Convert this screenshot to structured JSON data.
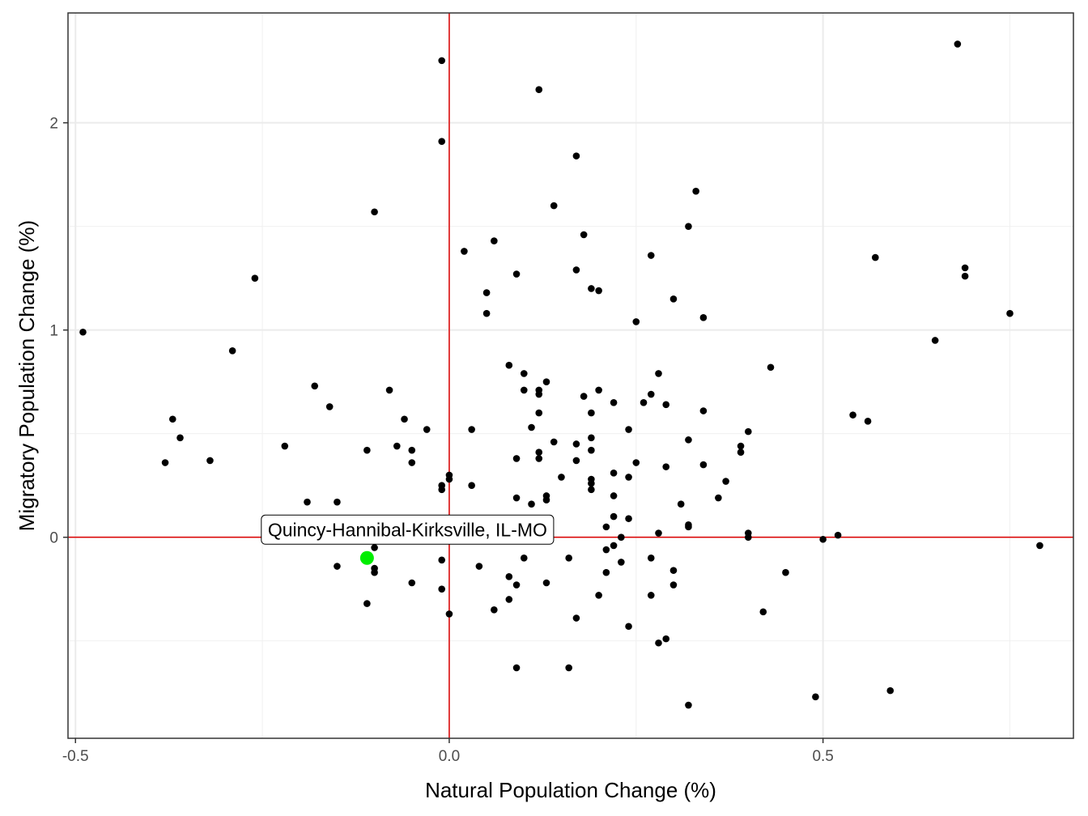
{
  "chart_data": {
    "type": "scatter",
    "title": "",
    "xlabel": "Natural Population Change (%)",
    "ylabel": "Migratory Population Change (%)",
    "xlim": [
      -0.51,
      0.835
    ],
    "ylim": [
      -0.97,
      2.53
    ],
    "x_ticks": [
      -0.5,
      0.0,
      0.5
    ],
    "x_tick_labels": [
      "-0.5",
      "0.0",
      "0.5"
    ],
    "y_ticks": [
      0,
      1,
      2
    ],
    "y_tick_labels": [
      "0",
      "1",
      "2"
    ],
    "x_minor": [
      -0.25,
      0.25,
      0.75
    ],
    "y_minor": [
      -0.5,
      0.5,
      1.5
    ],
    "grid": true,
    "reference_lines": {
      "x": 0,
      "y": 0,
      "color": "#dd0000"
    },
    "highlight": {
      "label": "Quincy-Hannibal-Kirksville, IL-MO",
      "x": -0.11,
      "y": -0.1,
      "color": "#00ee00"
    },
    "points": [
      [
        -0.49,
        0.99
      ],
      [
        -0.38,
        0.36
      ],
      [
        -0.37,
        0.57
      ],
      [
        -0.36,
        0.48
      ],
      [
        -0.32,
        0.37
      ],
      [
        -0.29,
        0.9
      ],
      [
        -0.26,
        1.25
      ],
      [
        -0.22,
        0.44
      ],
      [
        -0.19,
        0.17
      ],
      [
        -0.18,
        0.73
      ],
      [
        -0.16,
        0.63
      ],
      [
        -0.15,
        0.17
      ],
      [
        -0.15,
        -0.14
      ],
      [
        -0.11,
        0.42
      ],
      [
        -0.11,
        -0.32
      ],
      [
        -0.1,
        1.57
      ],
      [
        -0.1,
        -0.17
      ],
      [
        -0.1,
        -0.15
      ],
      [
        -0.1,
        -0.05
      ],
      [
        -0.08,
        0.71
      ],
      [
        -0.07,
        0.44
      ],
      [
        -0.06,
        0.57
      ],
      [
        -0.05,
        0.42
      ],
      [
        -0.05,
        0.36
      ],
      [
        -0.05,
        -0.22
      ],
      [
        -0.03,
        0.52
      ],
      [
        -0.01,
        2.3
      ],
      [
        -0.01,
        1.91
      ],
      [
        -0.01,
        0.25
      ],
      [
        -0.01,
        0.23
      ],
      [
        -0.01,
        -0.11
      ],
      [
        -0.01,
        -0.25
      ],
      [
        0.0,
        0.3
      ],
      [
        0.0,
        0.28
      ],
      [
        0.0,
        -0.37
      ],
      [
        0.02,
        1.38
      ],
      [
        0.03,
        0.52
      ],
      [
        0.03,
        0.25
      ],
      [
        0.04,
        -0.14
      ],
      [
        0.05,
        1.18
      ],
      [
        0.05,
        1.08
      ],
      [
        0.06,
        1.43
      ],
      [
        0.06,
        -0.35
      ],
      [
        0.08,
        0.83
      ],
      [
        0.08,
        -0.19
      ],
      [
        0.08,
        -0.3
      ],
      [
        0.09,
        1.27
      ],
      [
        0.09,
        0.38
      ],
      [
        0.09,
        0.19
      ],
      [
        0.09,
        -0.23
      ],
      [
        0.09,
        -0.63
      ],
      [
        0.1,
        0.79
      ],
      [
        0.1,
        0.71
      ],
      [
        0.1,
        -0.1
      ],
      [
        0.11,
        0.53
      ],
      [
        0.11,
        0.16
      ],
      [
        0.12,
        2.16
      ],
      [
        0.12,
        0.71
      ],
      [
        0.12,
        0.69
      ],
      [
        0.12,
        0.6
      ],
      [
        0.12,
        0.41
      ],
      [
        0.12,
        0.38
      ],
      [
        0.13,
        0.75
      ],
      [
        0.13,
        0.2
      ],
      [
        0.13,
        0.18
      ],
      [
        0.13,
        -0.22
      ],
      [
        0.14,
        1.6
      ],
      [
        0.14,
        0.46
      ],
      [
        0.15,
        0.29
      ],
      [
        0.16,
        -0.1
      ],
      [
        0.16,
        -0.63
      ],
      [
        0.17,
        1.84
      ],
      [
        0.17,
        1.29
      ],
      [
        0.17,
        0.45
      ],
      [
        0.17,
        0.37
      ],
      [
        0.17,
        -0.39
      ],
      [
        0.18,
        1.46
      ],
      [
        0.18,
        0.68
      ],
      [
        0.19,
        1.2
      ],
      [
        0.19,
        0.6
      ],
      [
        0.19,
        0.48
      ],
      [
        0.19,
        0.42
      ],
      [
        0.19,
        0.28
      ],
      [
        0.19,
        0.26
      ],
      [
        0.19,
        0.23
      ],
      [
        0.2,
        1.19
      ],
      [
        0.2,
        0.71
      ],
      [
        0.2,
        -0.28
      ],
      [
        0.21,
        0.05
      ],
      [
        0.21,
        -0.06
      ],
      [
        0.21,
        -0.17
      ],
      [
        0.22,
        0.65
      ],
      [
        0.22,
        0.31
      ],
      [
        0.22,
        0.2
      ],
      [
        0.22,
        0.1
      ],
      [
        0.22,
        -0.04
      ],
      [
        0.23,
        0.0
      ],
      [
        0.23,
        -0.12
      ],
      [
        0.24,
        0.52
      ],
      [
        0.24,
        0.29
      ],
      [
        0.24,
        0.09
      ],
      [
        0.24,
        -0.43
      ],
      [
        0.25,
        1.04
      ],
      [
        0.25,
        0.36
      ],
      [
        0.26,
        0.65
      ],
      [
        0.27,
        1.36
      ],
      [
        0.27,
        0.69
      ],
      [
        0.27,
        -0.1
      ],
      [
        0.27,
        -0.28
      ],
      [
        0.28,
        0.79
      ],
      [
        0.28,
        0.02
      ],
      [
        0.28,
        -0.51
      ],
      [
        0.29,
        0.64
      ],
      [
        0.29,
        0.34
      ],
      [
        0.29,
        -0.49
      ],
      [
        0.3,
        1.15
      ],
      [
        0.3,
        -0.16
      ],
      [
        0.3,
        -0.23
      ],
      [
        0.31,
        0.16
      ],
      [
        0.32,
        1.5
      ],
      [
        0.32,
        0.47
      ],
      [
        0.32,
        0.06
      ],
      [
        0.32,
        0.05
      ],
      [
        0.32,
        -0.81
      ],
      [
        0.33,
        1.67
      ],
      [
        0.34,
        1.06
      ],
      [
        0.34,
        0.61
      ],
      [
        0.34,
        0.35
      ],
      [
        0.36,
        0.19
      ],
      [
        0.37,
        0.27
      ],
      [
        0.39,
        0.44
      ],
      [
        0.39,
        0.41
      ],
      [
        0.4,
        0.51
      ],
      [
        0.4,
        0.02
      ],
      [
        0.4,
        0.0
      ],
      [
        0.42,
        -0.36
      ],
      [
        0.43,
        0.82
      ],
      [
        0.45,
        -0.17
      ],
      [
        0.49,
        -0.77
      ],
      [
        0.5,
        -0.01
      ],
      [
        0.52,
        0.01
      ],
      [
        0.54,
        0.59
      ],
      [
        0.56,
        0.56
      ],
      [
        0.57,
        1.35
      ],
      [
        0.59,
        -0.74
      ],
      [
        0.65,
        0.95
      ],
      [
        0.68,
        2.38
      ],
      [
        0.69,
        1.3
      ],
      [
        0.69,
        1.26
      ],
      [
        0.75,
        1.08
      ],
      [
        0.79,
        -0.04
      ]
    ]
  }
}
